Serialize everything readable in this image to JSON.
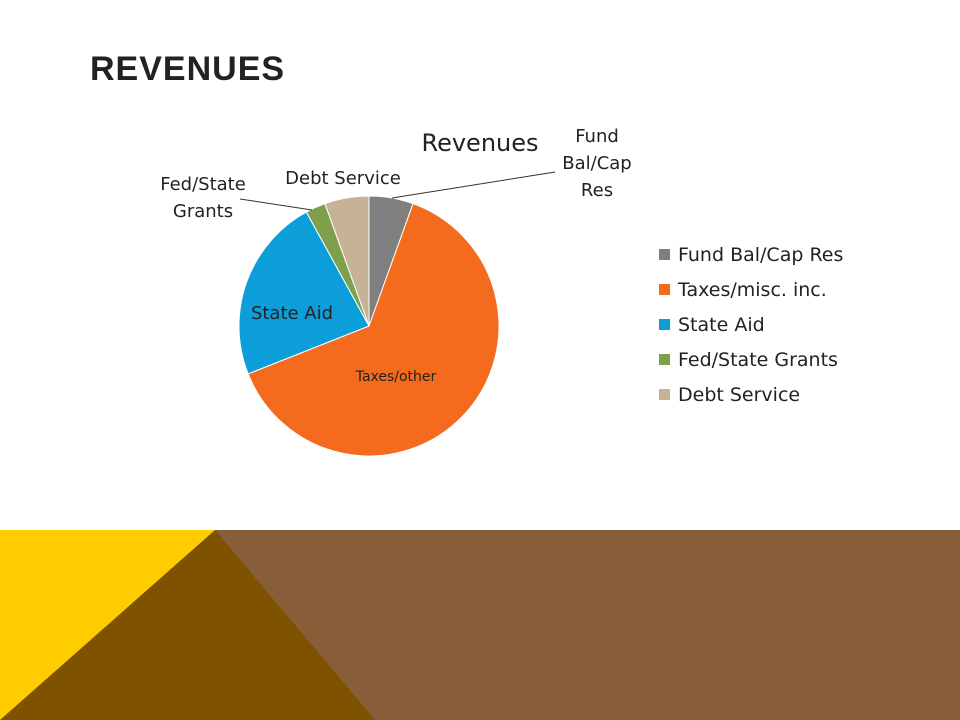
{
  "slide": {
    "title": "REVENUES"
  },
  "chart_data": {
    "type": "pie",
    "title": "Revenues",
    "slices": [
      {
        "name": "Fund Bal/Cap Res",
        "value": 5.5,
        "color": "#7f7f7f",
        "label": "Fund Bal/Cap Res"
      },
      {
        "name": "Taxes/misc. inc.",
        "value": 63.5,
        "color": "#f46b1d",
        "label": "Taxes/other"
      },
      {
        "name": "State Aid",
        "value": 23.0,
        "color": "#0c9ed9",
        "label": "State Aid"
      },
      {
        "name": "Fed/State Grants",
        "value": 2.5,
        "color": "#7ea04d",
        "label": "Fed/State Grants"
      },
      {
        "name": "Debt Service",
        "value": 5.5,
        "color": "#c6b296",
        "label": "Debt Service"
      }
    ],
    "legend": [
      "Fund Bal/Cap Res",
      "Taxes/misc. inc.",
      "State Aid",
      "Fed/State Grants",
      "Debt Service"
    ],
    "legend_position": "right"
  },
  "colors": {
    "footer_brown": "#875e38",
    "footer_dark": "#7f5200",
    "footer_gold": "#ffcc00"
  }
}
